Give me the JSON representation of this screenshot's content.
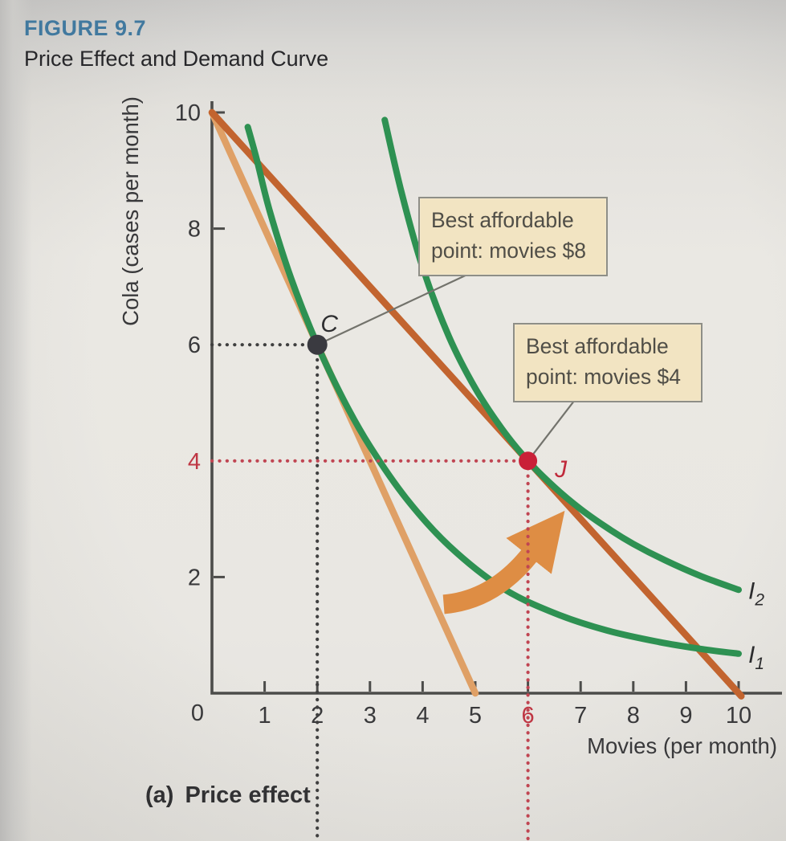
{
  "figure": {
    "label": "FIGURE 9.7",
    "title": "Price Effect and Demand Curve",
    "caption_prefix": "(a)",
    "caption_text": "Price effect"
  },
  "chart_data": {
    "type": "line",
    "title": "Price Effect and Demand Curve",
    "xlabel": "Movies (per month)",
    "ylabel": "Cola (cases per month)",
    "xlim": [
      0,
      10.8
    ],
    "ylim": [
      0,
      10.2
    ],
    "origin_label": "0",
    "axis_color": "#4c4c4a",
    "text_color": "#39393b",
    "highlight_color": "#bf3744",
    "leader_color": "#73736c",
    "curve_label_color": "#2c2c2e",
    "callout_bg": "#f2e4c2",
    "callout_border": "#8e8e87",
    "callout_text": "#504e47",
    "title_color": "#41799f",
    "x_ticks": [
      {
        "label": "1",
        "value": 1,
        "highlight": false
      },
      {
        "label": "2",
        "value": 2,
        "highlight": false
      },
      {
        "label": "3",
        "value": 3,
        "highlight": false
      },
      {
        "label": "4",
        "value": 4,
        "highlight": false
      },
      {
        "label": "5",
        "value": 5,
        "highlight": false
      },
      {
        "label": "6",
        "value": 6,
        "highlight": true
      },
      {
        "label": "7",
        "value": 7,
        "highlight": false
      },
      {
        "label": "8",
        "value": 8,
        "highlight": false
      },
      {
        "label": "9",
        "value": 9,
        "highlight": false
      },
      {
        "label": "10",
        "value": 10,
        "highlight": false
      }
    ],
    "y_ticks": [
      {
        "label": "10",
        "value": 10,
        "highlight": false,
        "has_tick": true
      },
      {
        "label": "8",
        "value": 8,
        "highlight": false,
        "has_tick": true
      },
      {
        "label": "6",
        "value": 6,
        "highlight": false,
        "has_tick": false
      },
      {
        "label": "4",
        "value": 4,
        "highlight": true,
        "has_tick": false
      },
      {
        "label": "2",
        "value": 2,
        "highlight": false,
        "has_tick": true
      }
    ],
    "budget_lines": [
      {
        "name": "budget-line-movie-price-8",
        "color": "#dfa066",
        "points": [
          [
            0,
            10
          ],
          [
            5,
            0
          ]
        ]
      },
      {
        "name": "budget-line-movie-price-4",
        "color": "#c2642f",
        "points": [
          [
            0,
            10
          ],
          [
            10.05,
            -0.05
          ]
        ]
      }
    ],
    "indifference_curves": [
      {
        "name": "indifference-curve-I1",
        "label_main": "I",
        "label_sub": "1",
        "color": "#2e9152",
        "points": [
          [
            0.68,
            9.75
          ],
          [
            0.85,
            9.19
          ],
          [
            1.1,
            8.29
          ],
          [
            1.5,
            7.15
          ],
          [
            2,
            6
          ],
          [
            2.5,
            5.05
          ],
          [
            3,
            4.25
          ],
          [
            3.7,
            3.34
          ],
          [
            4.5,
            2.54
          ],
          [
            5.5,
            1.82
          ],
          [
            6.5,
            1.38
          ],
          [
            7.5,
            1.08
          ],
          [
            8.5,
            0.88
          ],
          [
            9.3,
            0.76
          ],
          [
            10,
            0.68
          ]
        ]
      },
      {
        "name": "indifference-curve-I2",
        "label_main": "I",
        "label_sub": "2",
        "color": "#2e9152",
        "points": [
          [
            3.28,
            9.87
          ],
          [
            3.6,
            8.62
          ],
          [
            4,
            7.33
          ],
          [
            4.5,
            6.14
          ],
          [
            5,
            5.25
          ],
          [
            5.5,
            4.56
          ],
          [
            6,
            4
          ],
          [
            6.5,
            3.55
          ],
          [
            7,
            3.17
          ],
          [
            7.5,
            2.85
          ],
          [
            8,
            2.57
          ],
          [
            8.6,
            2.29
          ],
          [
            9.3,
            2.01
          ],
          [
            10,
            1.78
          ]
        ]
      }
    ],
    "points": [
      {
        "name": "point-C",
        "label": "C",
        "x": 2,
        "y": 6,
        "dot_color": "#3a3a40",
        "label_color": "#2e2e30",
        "guide_color": "#3f3f3f"
      },
      {
        "name": "point-J",
        "label": "J",
        "x": 6,
        "y": 4,
        "dot_color": "#c92038",
        "label_color": "#c02a3b",
        "guide_color": "#c04552"
      }
    ],
    "callouts": [
      {
        "text": "Best affordable point: movies $8",
        "target": "C"
      },
      {
        "text": "Best affordable point: movies $4",
        "target": "J"
      }
    ],
    "arrow": {
      "color": "#de8d44",
      "from": [
        4.4,
        1.53
      ],
      "via": [
        5.35,
        1.6
      ],
      "to": [
        6.05,
        2.4
      ]
    }
  }
}
